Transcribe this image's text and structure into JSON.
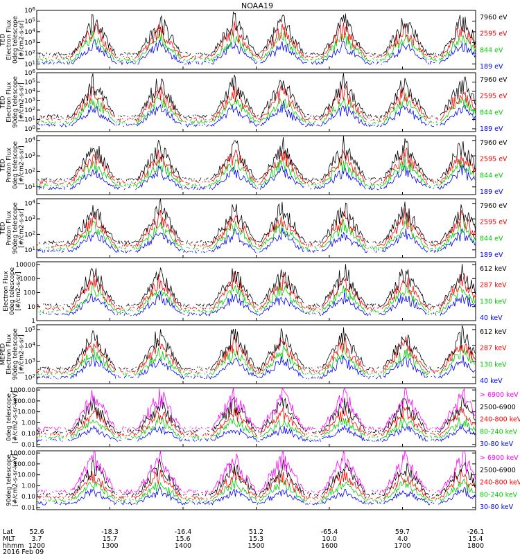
{
  "chart_data": {
    "type": "line",
    "title": "NOAA19",
    "panels": [
      {
        "id": "p1",
        "ylabel_lines": [
          "TED",
          "Electron Flux",
          "0deg telescope",
          "[#/cm2-s-sr]"
        ],
        "ytick_labels": [
          "10^1",
          "10^2",
          "10^3",
          "10^4",
          "10^5",
          "10^6"
        ],
        "ylog_range": [
          0.5,
          6
        ],
        "legend": [
          {
            "label": "7960 eV",
            "color": "#000000"
          },
          {
            "label": "2595 eV",
            "color": "#ff0000"
          },
          {
            "label": "844 eV",
            "color": "#00cc00"
          },
          {
            "label": "189 eV",
            "color": "#0000ff"
          }
        ]
      },
      {
        "id": "p2",
        "ylabel_lines": [
          "TED",
          "Electron Flux",
          "90deg telescope",
          "[#/cm2-s-sr]"
        ],
        "ytick_labels": [
          "10^0",
          "10^1",
          "10^2",
          "10^3",
          "10^4",
          "10^5",
          "10^6"
        ],
        "ylog_range": [
          -0.3,
          6
        ],
        "legend": [
          {
            "label": "7960 eV",
            "color": "#000000"
          },
          {
            "label": "2595 eV",
            "color": "#ff0000"
          },
          {
            "label": "844 eV",
            "color": "#00cc00"
          },
          {
            "label": "189 eV",
            "color": "#0000ff"
          }
        ]
      },
      {
        "id": "p3",
        "ylabel_lines": [
          "TED",
          "Proton Flux",
          "0deg telescope",
          "[#/cm2-s-sr]"
        ],
        "ytick_labels": [
          "10^1",
          "10^2",
          "10^3",
          "10^4"
        ],
        "ylog_range": [
          0.5,
          4.3
        ],
        "legend": [
          {
            "label": "7960 eV",
            "color": "#000000"
          },
          {
            "label": "2595 eV",
            "color": "#ff0000"
          },
          {
            "label": "844 eV",
            "color": "#00cc00"
          },
          {
            "label": "189 eV",
            "color": "#0000ff"
          }
        ]
      },
      {
        "id": "p4",
        "ylabel_lines": [
          "TED",
          "Proton Flux",
          "90deg telescope",
          "[#/cm2-s-sr]"
        ],
        "ytick_labels": [
          "10^1",
          "10^2",
          "10^3",
          "10^4"
        ],
        "ylog_range": [
          0.5,
          4.3
        ],
        "legend": [
          {
            "label": "7960 eV",
            "color": "#000000"
          },
          {
            "label": "2595 eV",
            "color": "#ff0000"
          },
          {
            "label": "844 eV",
            "color": "#00cc00"
          },
          {
            "label": "189 eV",
            "color": "#0000ff"
          }
        ]
      },
      {
        "id": "p5",
        "ylabel_lines": [
          "Electron Flux",
          "0deg telescope",
          "[#/cm2-s-sr]"
        ],
        "ytick_labels": [
          "1",
          "10",
          "100",
          "1000",
          "10000"
        ],
        "ylog_range": [
          0,
          4.2
        ],
        "legend": [
          {
            "label": "612 keV",
            "color": "#000000"
          },
          {
            "label": "287 keV",
            "color": "#ff0000"
          },
          {
            "label": "130 keV",
            "color": "#00cc00"
          },
          {
            "label": "40 keV",
            "color": "#0000ff"
          }
        ]
      },
      {
        "id": "p6",
        "ylabel_lines": [
          "MEPED",
          "Electron Flux",
          "90deg telescope",
          "[#/cm2-s-sr]"
        ],
        "ytick_labels": [
          "10^2",
          "10^3",
          "10^4",
          "10^5"
        ],
        "ylog_range": [
          1.6,
          5.3
        ],
        "legend": [
          {
            "label": "612 keV",
            "color": "#000000"
          },
          {
            "label": "287 keV",
            "color": "#ff0000"
          },
          {
            "label": "130 keV",
            "color": "#00cc00"
          },
          {
            "label": "40 keV",
            "color": "#0000ff"
          }
        ]
      },
      {
        "id": "p7",
        "ylabel_lines": [
          "0deg telescope",
          "[#/cm2-s-sr-keV]"
        ],
        "ytick_labels": [
          "0.01",
          "0.10",
          "1.00",
          "10.00",
          "100.00",
          "1000.00"
        ],
        "ylog_range": [
          -2.2,
          3.2
        ],
        "legend": [
          {
            "label": "> 6900 keV",
            "color": "#ff00ff"
          },
          {
            "label": "2500-6900",
            "color": "#000000"
          },
          {
            "label": "240-800 keV",
            "color": "#ff0000"
          },
          {
            "label": "80-240 keV",
            "color": "#00cc00"
          },
          {
            "label": "30-80 keV",
            "color": "#0000ff"
          }
        ]
      },
      {
        "id": "p8",
        "ylabel_lines": [
          "90deg telescope",
          "[#/cm2-s-sr-keV]"
        ],
        "ytick_labels": [
          "0.01",
          "0.10",
          "1.00",
          "10.00",
          "100.00",
          "1000.00"
        ],
        "ylog_range": [
          -2.2,
          3.2
        ],
        "legend": [
          {
            "label": "> 6900 keV",
            "color": "#ff00ff"
          },
          {
            "label": "2500-6900",
            "color": "#000000"
          },
          {
            "label": "240-800 keV",
            "color": "#ff0000"
          },
          {
            "label": "80-240 keV",
            "color": "#00cc00"
          },
          {
            "label": "30-80 keV",
            "color": "#0000ff"
          }
        ]
      }
    ],
    "x_axis": {
      "row_labels": [
        "Lat",
        "MLT",
        "hhmm"
      ],
      "lat": [
        "52.6",
        "-18.3",
        "-16.4",
        "51.2",
        "-65.4",
        "59.7",
        "-26.1"
      ],
      "mlt": [
        "3.7",
        "15.7",
        "15.6",
        "15.3",
        "10.0",
        "4.0",
        "15.4"
      ],
      "hhmm": [
        "1200",
        "1300",
        "1400",
        "1500",
        "1600",
        "1700",
        "1800"
      ],
      "xlim": [
        1200,
        1800
      ],
      "date": "2016 Feb 09"
    }
  }
}
